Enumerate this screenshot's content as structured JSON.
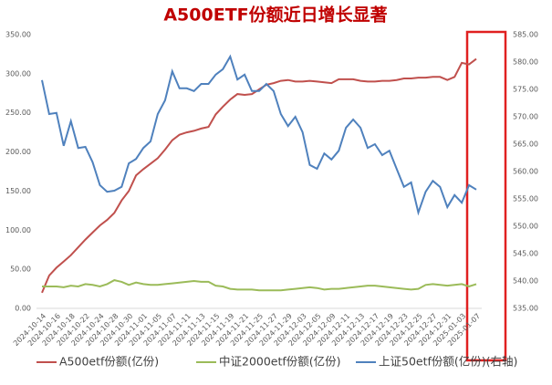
{
  "chart_data": {
    "type": "line",
    "title": "A500ETF份额近日增长显著",
    "categories": [
      "2024-10-14",
      null,
      "2024-10-16",
      null,
      "2024-10-18",
      null,
      "2024-10-22",
      null,
      "2024-10-24",
      null,
      "2024-10-28",
      null,
      "2024-10-30",
      null,
      "2024-11-01",
      null,
      "2024-11-05",
      null,
      "2024-11-07",
      null,
      "2024-11-11",
      null,
      "2024-11-13",
      null,
      "2024-11-15",
      null,
      "2024-11-19",
      null,
      "2024-11-21",
      null,
      "2024-11-25",
      null,
      "2024-11-27",
      null,
      "2024-11-29",
      null,
      "2024-12-03",
      null,
      "2024-12-05",
      null,
      "2024-12-09",
      null,
      "2024-12-11",
      null,
      "2024-12-13",
      null,
      "2024-12-17",
      null,
      "2024-12-19",
      null,
      "2024-12-23",
      null,
      "2024-12-25",
      null,
      "2024-12-27",
      null,
      "2024-12-31",
      null,
      "2025-01-03",
      null,
      "2025-01-07"
    ],
    "series": [
      {
        "name": "A500etf份额(亿份)",
        "color": "#c0504d",
        "values": [
          20,
          42,
          52,
          60,
          68,
          78,
          88,
          97,
          106,
          113,
          122,
          138,
          150,
          170,
          178,
          185,
          192,
          203,
          215,
          222,
          225,
          227,
          230,
          232,
          248,
          258,
          267,
          274,
          273,
          274,
          280,
          286,
          288,
          291,
          292,
          290,
          290,
          291,
          290,
          289,
          288,
          293,
          293,
          293,
          291,
          290,
          290,
          291,
          291,
          292,
          294,
          294,
          295,
          295,
          296,
          296,
          292,
          296,
          314,
          312,
          319
        ]
      },
      {
        "name": "中证2000etf份额(亿份)",
        "color": "#9bbb59",
        "values": [
          28,
          28,
          28,
          27,
          29,
          28,
          31,
          30,
          28,
          31,
          36,
          34,
          30,
          33,
          31,
          30,
          30,
          31,
          32,
          33,
          34,
          35,
          34,
          34,
          29,
          28,
          25,
          24,
          24,
          24,
          23,
          23,
          23,
          23,
          24,
          25,
          26,
          27,
          26,
          24,
          25,
          25,
          26,
          27,
          28,
          29,
          29,
          28,
          27,
          26,
          25,
          24,
          25,
          30,
          31,
          30,
          29,
          30,
          31,
          28,
          31
        ]
      },
      {
        "name": "上证50etf份额(亿份)(右轴)",
        "color": "#4f81bd",
        "axis": "y2",
        "values": [
          576.7,
          570.5,
          570.7,
          564.7,
          569.2,
          564.3,
          564.5,
          561.7,
          557.5,
          556.3,
          556.5,
          557.2,
          561.5,
          562.3,
          564.3,
          565.5,
          570.5,
          573,
          578.3,
          575.2,
          575.2,
          574.7,
          576,
          576,
          577.7,
          578.7,
          581,
          576.8,
          577.7,
          574.7,
          574.7,
          576,
          574.7,
          570.5,
          568.3,
          570,
          567.2,
          561.2,
          560.5,
          563.3,
          562.2,
          563.8,
          568,
          569.5,
          568,
          564.3,
          565,
          563,
          563.8,
          560.5,
          557.2,
          558,
          552.5,
          556.3,
          558.3,
          557.2,
          553.5,
          555.7,
          554.3,
          557.5,
          556.7
        ]
      }
    ],
    "ylim": [
      0,
      350
    ],
    "yticks": [
      {
        "value": 0,
        "label": "0.00"
      },
      {
        "value": 50,
        "label": "50.00"
      },
      {
        "value": 100,
        "label": "100.00"
      },
      {
        "value": 150,
        "label": "150.00"
      },
      {
        "value": 200,
        "label": "200.00"
      },
      {
        "value": 250,
        "label": "250.00"
      },
      {
        "value": 300,
        "label": "300.00"
      },
      {
        "value": 350,
        "label": "350.00"
      }
    ],
    "y2lim": [
      535,
      585
    ],
    "y2ticks": [
      {
        "value": 535,
        "label": "535.00"
      },
      {
        "value": 540,
        "label": "540.00"
      },
      {
        "value": 545,
        "label": "545.00"
      },
      {
        "value": 550,
        "label": "550.00"
      },
      {
        "value": 555,
        "label": "555.00"
      },
      {
        "value": 560,
        "label": "560.00"
      },
      {
        "value": 565,
        "label": "565.00"
      },
      {
        "value": 570,
        "label": "570.00"
      },
      {
        "value": 575,
        "label": "575.00"
      },
      {
        "value": 580,
        "label": "580.00"
      },
      {
        "value": 585,
        "label": "585.00"
      }
    ],
    "grid": false
  }
}
